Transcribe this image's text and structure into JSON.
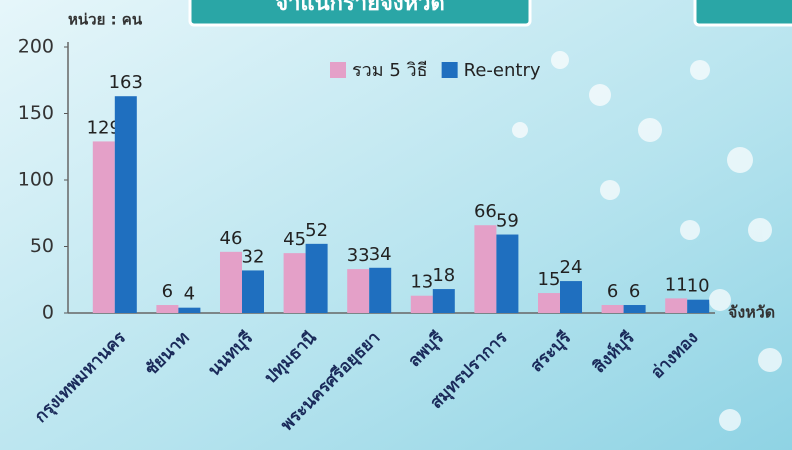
{
  "title": "จำแนกรายจังหวัด",
  "chart_data": {
    "type": "bar",
    "unit_label": "หน่วย : คน",
    "x_label": "จังหวัด",
    "categories": [
      "กรุงเทพมหานคร",
      "ชัยนาท",
      "นนทบุรี",
      "ปทุมธานี",
      "พระนครศรีอยุธยา",
      "ลพบุรี",
      "สมุทรปราการ",
      "สระบุรี",
      "สิงห์บุรี",
      "อ่างทอง"
    ],
    "series": [
      {
        "name": "รวม 5 วิธี",
        "color": "#e4a0c8",
        "values": [
          129,
          6,
          46,
          45,
          33,
          13,
          66,
          15,
          6,
          11
        ]
      },
      {
        "name": "Re-entry",
        "color": "#1f6fbf",
        "values": [
          163,
          4,
          32,
          52,
          34,
          18,
          59,
          24,
          6,
          10
        ]
      }
    ],
    "ylim": [
      0,
      200
    ],
    "yticks": [
      0,
      50,
      100,
      150,
      200
    ],
    "legend": "top"
  }
}
